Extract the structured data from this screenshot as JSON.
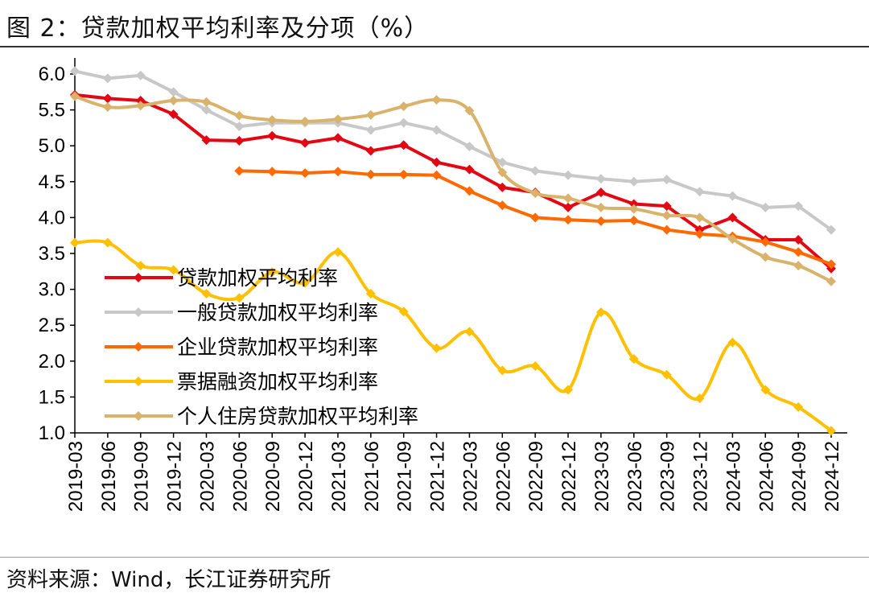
{
  "title": "图 2：贷款加权平均利率及分项（%）",
  "source": "资料来源：Wind，长江证券研究所",
  "chart_data": {
    "type": "line",
    "title": "图 2：贷款加权平均利率及分项（%）",
    "xlabel": "",
    "ylabel": "",
    "ylim": [
      1.0,
      6.0
    ],
    "yticks": [
      "1.0",
      "1.5",
      "2.0",
      "2.5",
      "3.0",
      "3.5",
      "4.0",
      "4.5",
      "5.0",
      "5.5",
      "6.0"
    ],
    "grid": false,
    "legend_position": "lower-left",
    "categories": [
      "2019-03",
      "2019-06",
      "2019-09",
      "2019-12",
      "2020-03",
      "2020-06",
      "2020-09",
      "2020-12",
      "2021-03",
      "2021-06",
      "2021-09",
      "2021-12",
      "2022-03",
      "2022-06",
      "2022-09",
      "2022-12",
      "2023-03",
      "2023-06",
      "2023-09",
      "2023-12",
      "2024-03",
      "2024-06",
      "2024-09",
      "2024-12"
    ],
    "series": [
      {
        "name": "贷款加权平均利率",
        "color": "#E30613",
        "smooth": false,
        "values": [
          5.71,
          5.66,
          5.63,
          5.44,
          5.08,
          5.07,
          5.14,
          5.04,
          5.11,
          4.93,
          5.01,
          4.77,
          4.67,
          4.42,
          4.35,
          4.14,
          4.35,
          4.19,
          4.16,
          3.83,
          4.0,
          3.69,
          3.69,
          3.29
        ]
      },
      {
        "name": "一般贷款加权平均利率",
        "color": "#C8C8C8",
        "smooth": false,
        "values": [
          6.04,
          5.94,
          5.98,
          5.75,
          5.5,
          5.27,
          5.32,
          5.32,
          5.32,
          5.22,
          5.32,
          5.22,
          4.99,
          4.77,
          4.65,
          4.59,
          4.54,
          4.5,
          4.53,
          4.36,
          4.3,
          4.14,
          4.16,
          3.83
        ]
      },
      {
        "name": "企业贷款加权平均利率",
        "color": "#FF6A00",
        "smooth": false,
        "values": [
          null,
          null,
          null,
          null,
          null,
          4.65,
          4.64,
          4.62,
          4.64,
          4.6,
          4.6,
          4.59,
          4.37,
          4.17,
          4.0,
          3.97,
          3.95,
          3.96,
          3.83,
          3.77,
          3.74,
          3.66,
          3.52,
          3.35
        ]
      },
      {
        "name": "票据融资加权平均利率",
        "color": "#FFC000",
        "smooth": true,
        "values": [
          3.65,
          3.65,
          3.33,
          3.27,
          2.94,
          2.88,
          3.24,
          3.09,
          3.52,
          2.94,
          2.69,
          2.18,
          2.41,
          1.87,
          1.93,
          1.6,
          2.68,
          2.03,
          1.81,
          1.48,
          2.26,
          1.6,
          1.36,
          1.03
        ]
      },
      {
        "name": "个人住房贷款加权平均利率",
        "color": "#D9B36B",
        "smooth": true,
        "values": [
          5.69,
          5.54,
          5.56,
          5.63,
          5.61,
          5.42,
          5.36,
          5.34,
          5.37,
          5.43,
          5.55,
          5.64,
          5.49,
          4.63,
          4.34,
          4.27,
          4.14,
          4.12,
          4.03,
          4.0,
          3.7,
          3.45,
          3.33,
          3.11
        ]
      }
    ]
  }
}
